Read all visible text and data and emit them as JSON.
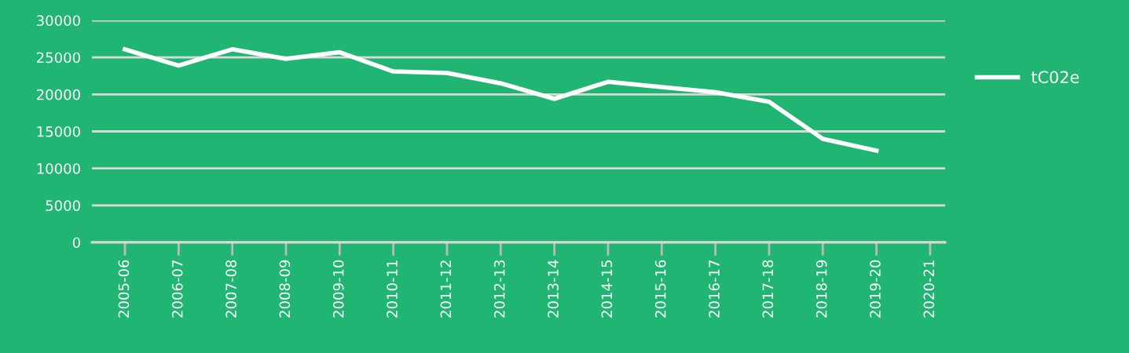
{
  "chart_data": {
    "type": "line",
    "categories": [
      "2005-06",
      "2006-07",
      "2007-08",
      "2008-09",
      "2009-10",
      "2010-11",
      "2011-12",
      "2012-13",
      "2013-14",
      "2014-15",
      "2015-16",
      "2016-17",
      "2017-18",
      "2018-19",
      "2019-20",
      "2020-21"
    ],
    "series": [
      {
        "name": "tC02e",
        "color": "#ffffff",
        "values": [
          26100,
          23900,
          26100,
          24800,
          25700,
          23100,
          22900,
          21500,
          19400,
          21700,
          21000,
          20300,
          19000,
          14000,
          12400,
          null
        ]
      }
    ],
    "ylim": [
      0,
      30000
    ],
    "yticks": [
      0,
      5000,
      10000,
      15000,
      20000,
      25000,
      30000
    ],
    "grid": "y",
    "legend": "top right",
    "marker": "none",
    "line_style": "solid"
  }
}
